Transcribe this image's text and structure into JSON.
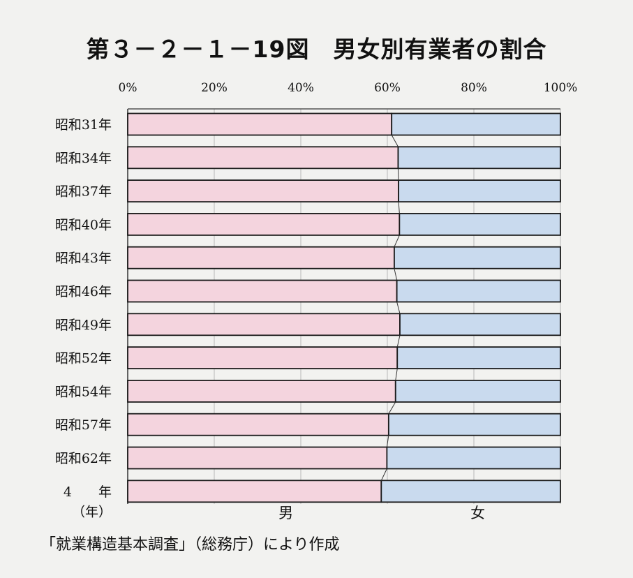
{
  "title": "第３－２－１－19図　男女別有業者の割合",
  "source": "「就業構造基本調査」（総務庁）により作成",
  "colors": {
    "male": "#f4d4de",
    "female": "#c9daee",
    "background": "#f2f2f0",
    "border": "#1a1a1a"
  },
  "chart_data": {
    "type": "bar",
    "orientation": "horizontal",
    "stacked": true,
    "percent": true,
    "xlim": [
      0,
      100
    ],
    "xticks": [
      "0%",
      "20%",
      "40%",
      "60%",
      "80%",
      "100%"
    ],
    "xtick_values": [
      0,
      20,
      40,
      60,
      80,
      100
    ],
    "y_unit_label": "（年）",
    "categories": [
      "昭和31年",
      "昭和34年",
      "昭和37年",
      "昭和40年",
      "昭和43年",
      "昭和46年",
      "昭和49年",
      "昭和52年",
      "昭和54年",
      "昭和57年",
      "昭和62年",
      "4　　年"
    ],
    "series": [
      {
        "name": "男",
        "values": [
          61.0,
          62.5,
          62.6,
          62.8,
          61.6,
          62.2,
          62.9,
          62.3,
          61.9,
          60.3,
          59.9,
          58.6
        ]
      },
      {
        "name": "女",
        "values": [
          39.0,
          37.5,
          37.4,
          37.2,
          38.4,
          37.8,
          37.1,
          37.7,
          38.1,
          39.7,
          40.1,
          41.4
        ]
      }
    ],
    "gridlines": "vertical, at tick positions"
  }
}
